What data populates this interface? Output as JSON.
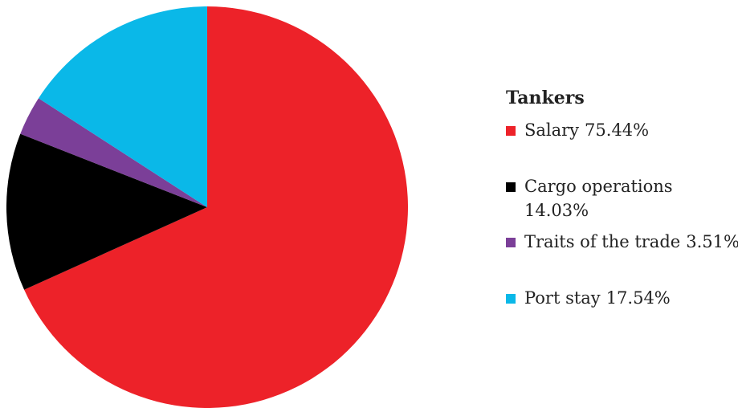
{
  "chart_data": {
    "type": "pie",
    "title": "Tankers",
    "categories": [
      "Salary",
      "Cargo operations",
      "Traits of the trade",
      "Port stay"
    ],
    "values": [
      75.44,
      14.03,
      3.51,
      17.54
    ],
    "value_labels": [
      "75.44%",
      "14.03%",
      "3.51%",
      "17.54%"
    ],
    "colors": [
      "#ed2229",
      "#000000",
      "#7b3f98",
      "#0ab8e8"
    ]
  }
}
